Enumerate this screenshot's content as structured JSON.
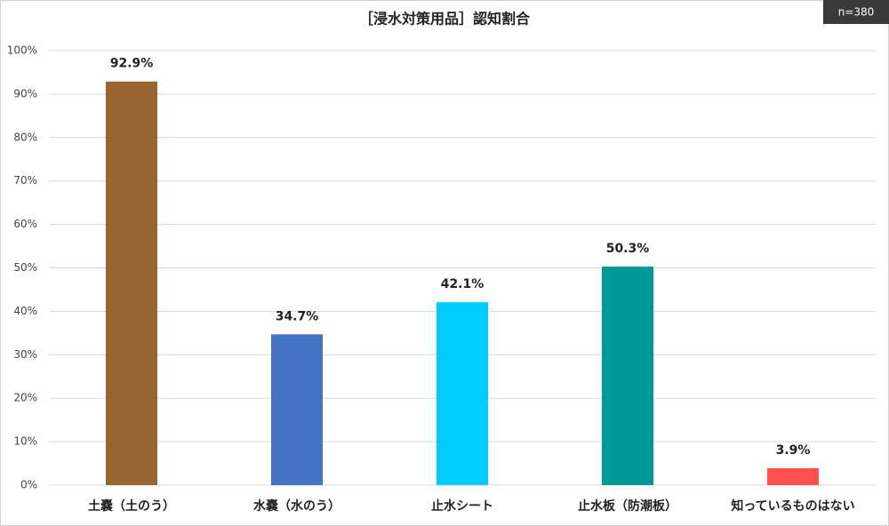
{
  "chart_data": {
    "type": "bar",
    "title": "［浸水対策用品］認知割合",
    "badge": "n=380",
    "categories": [
      "土嚢（土のう）",
      "水嚢（水のう）",
      "止水シート",
      "止水板（防潮板）",
      "知っているものはない"
    ],
    "values": [
      92.9,
      34.7,
      42.1,
      50.3,
      3.9
    ],
    "value_labels": [
      "92.9%",
      "34.7%",
      "42.1%",
      "50.3%",
      "3.9%"
    ],
    "colors": [
      "#996633",
      "#4472c4",
      "#00ccff",
      "#009999",
      "#ff5050"
    ],
    "ylim": [
      0,
      100
    ],
    "yticks": [
      {
        "value": 0,
        "label": "0%"
      },
      {
        "value": 10,
        "label": "10%"
      },
      {
        "value": 20,
        "label": "20%"
      },
      {
        "value": 30,
        "label": "30%"
      },
      {
        "value": 40,
        "label": "40%"
      },
      {
        "value": 50,
        "label": "50%"
      },
      {
        "value": 60,
        "label": "60%"
      },
      {
        "value": 70,
        "label": "70%"
      },
      {
        "value": 80,
        "label": "80%"
      },
      {
        "value": 90,
        "label": "90%"
      },
      {
        "value": 100,
        "label": "100%"
      }
    ],
    "grid": true
  }
}
